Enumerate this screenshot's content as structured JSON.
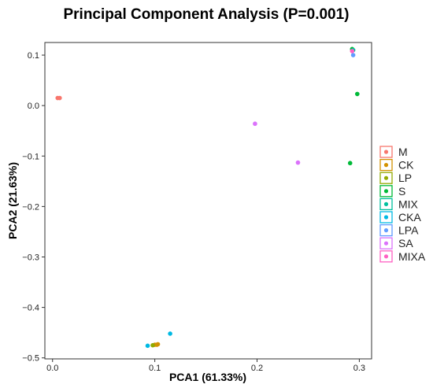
{
  "chart_data": {
    "type": "scatter",
    "title": "Principal Component Analysis (P=0.001)",
    "xlabel": "PCA1 (61.33%)",
    "ylabel": "PCA2 (21.63%)",
    "xlim": [
      -0.0075,
      0.312
    ],
    "ylim": [
      -0.502,
      0.125
    ],
    "xticks": [
      0.0,
      0.1,
      0.2,
      0.3
    ],
    "xtick_labels": [
      "0.0",
      "0.1",
      "0.2",
      "0.3"
    ],
    "yticks": [
      0.1,
      0.0,
      -0.1,
      -0.2,
      -0.3,
      -0.4,
      -0.5
    ],
    "ytick_labels": [
      "0.1",
      "0.0",
      "−0.1",
      "−0.2",
      "−0.3",
      "−0.4",
      "−0.5"
    ],
    "grid": false,
    "legend_placement": "right",
    "series": [
      {
        "name": "M",
        "color": "#F8766D",
        "points": [
          [
            0.005,
            0.015
          ],
          [
            0.007,
            0.015
          ]
        ]
      },
      {
        "name": "CK",
        "color": "#D39200",
        "points": [
          [
            0.1,
            -0.474
          ],
          [
            0.102,
            -0.474
          ],
          [
            0.103,
            -0.473
          ]
        ]
      },
      {
        "name": "LP",
        "color": "#93AA00",
        "points": [
          [
            0.098,
            -0.475
          ]
        ]
      },
      {
        "name": "S",
        "color": "#00BA38",
        "points": [
          [
            0.298,
            0.023
          ],
          [
            0.291,
            -0.114
          ],
          [
            0.293,
            0.112
          ]
        ]
      },
      {
        "name": "MIX",
        "color": "#00C19F",
        "points": [
          [
            0.294,
            0.11
          ]
        ]
      },
      {
        "name": "CKA",
        "color": "#00B9E3",
        "points": [
          [
            0.093,
            -0.476
          ],
          [
            0.115,
            -0.452
          ]
        ]
      },
      {
        "name": "LPA",
        "color": "#619CFF",
        "points": [
          [
            0.294,
            0.1
          ]
        ]
      },
      {
        "name": "SA",
        "color": "#DB72FB",
        "points": [
          [
            0.198,
            -0.036
          ],
          [
            0.24,
            -0.113
          ]
        ]
      },
      {
        "name": "MIXA",
        "color": "#FF61C3",
        "points": [
          [
            0.293,
            0.108
          ]
        ]
      }
    ]
  }
}
